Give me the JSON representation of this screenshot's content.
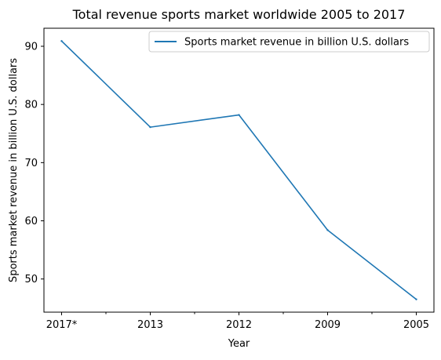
{
  "chart_data": {
    "type": "line",
    "title": "Total revenue sports market worldwide 2005 to 2017",
    "xlabel": "Year",
    "ylabel": "Sports market revenue in billion U.S. dollars",
    "categories": [
      "2017*",
      "2013",
      "2012",
      "2009",
      "2005"
    ],
    "series": [
      {
        "name": "Sports market revenue in billion U.S. dollars",
        "values": [
          90.9,
          76.1,
          78.2,
          58.4,
          46.5
        ],
        "color": "#1f77b4"
      }
    ],
    "yticks": [
      50,
      60,
      70,
      80,
      90
    ],
    "ylim": [
      44.3,
      93.1
    ],
    "grid": false,
    "legend_position": "top-right"
  }
}
